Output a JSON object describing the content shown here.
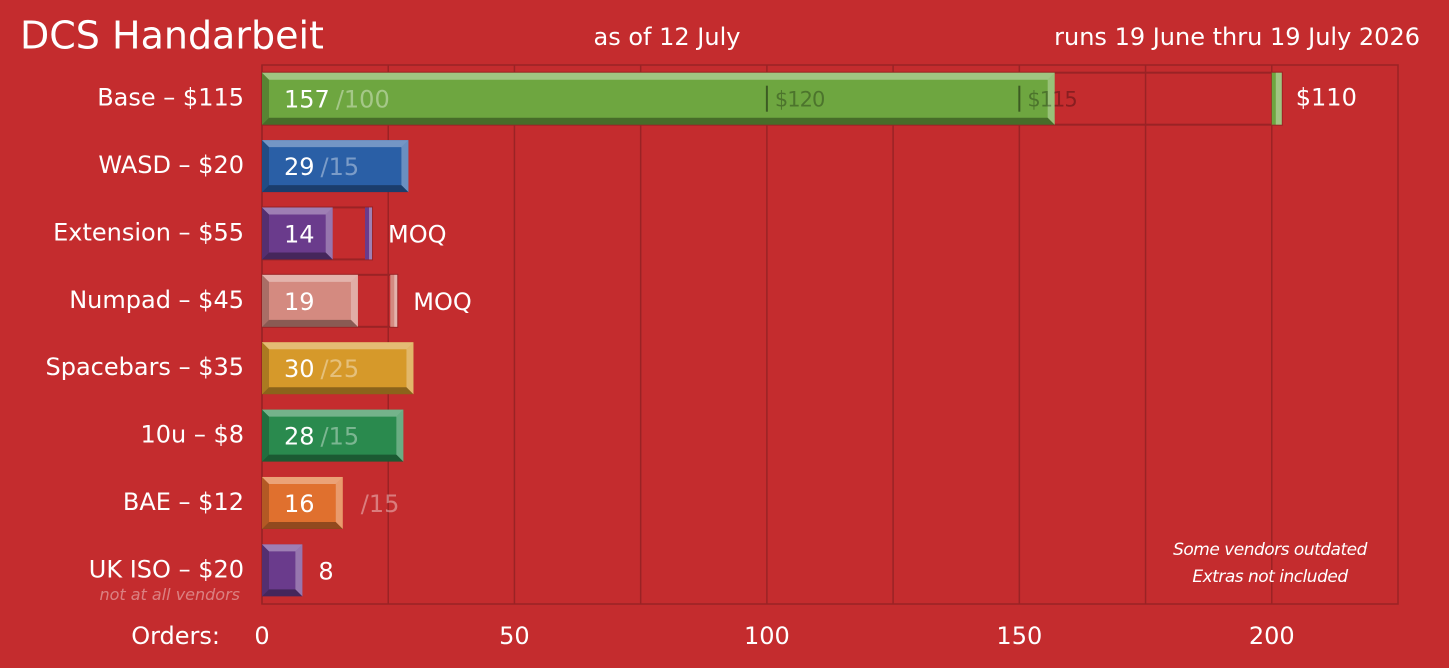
{
  "chart_data": {
    "type": "bar",
    "orientation": "horizontal",
    "title": "DCS Handarbeit",
    "subtitle": "as of 12 July",
    "run_period": "runs 19 June thru 19 July 2026",
    "x_label": "Orders:",
    "categories": [
      "Base – $115",
      "WASD – $20",
      "Extension – $55",
      "Numpad – $45",
      "Spacebars – $35",
      "10u – $8",
      "BAE – $12",
      "UK ISO – $20"
    ],
    "category_notes": [
      null,
      null,
      null,
      null,
      null,
      null,
      null,
      "not at all vendors"
    ],
    "values": [
      157,
      29,
      14,
      19,
      30,
      28,
      16,
      8
    ],
    "colors": [
      "#6ea640",
      "#2a5fa6",
      "#6a3b8c",
      "#d48a80",
      "#d6992a",
      "#2a8a4e",
      "#e0702e",
      "#6a3b8c"
    ],
    "targets": [
      100,
      15,
      21,
      26,
      25,
      15,
      15,
      null
    ],
    "target_labels": [
      "/100",
      "/15",
      "MOQ",
      "MOQ",
      "/25",
      "/15",
      "/15",
      null
    ],
    "tiers": [
      [
        {
          "value": 100,
          "label": "$120"
        },
        {
          "value": 150,
          "label": "$115"
        },
        {
          "value": 200,
          "label": "$110"
        }
      ],
      null,
      null,
      null,
      null,
      null,
      null,
      null
    ],
    "xlim": [
      0,
      225
    ],
    "xticks": [
      0,
      50,
      100,
      150,
      200
    ],
    "minor_xticks": [
      25,
      75,
      125,
      175
    ],
    "grid": true,
    "annotations": [
      "Some vendors outdated",
      "Extras not included"
    ]
  }
}
